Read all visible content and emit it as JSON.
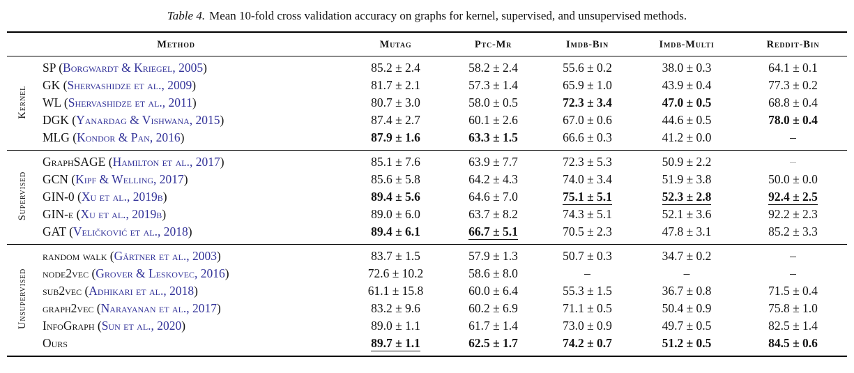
{
  "caption": {
    "label": "Table 4.",
    "text": "Mean 10-fold cross validation accuracy on graphs for kernel, supervised, and unsupervised methods."
  },
  "colors": {
    "citation_link": "#333399",
    "missing_value_muted": "#a8a8a8"
  },
  "table": {
    "columns": [
      "Method",
      "Mutag",
      "Ptc-Mr",
      "Imdb-Bin",
      "Imdb-Multi",
      "Reddit-Bin"
    ],
    "groups": [
      {
        "label": "Kernel",
        "rows": [
          {
            "method": "SP",
            "citation": "Borgwardt & Kriegel, 2005",
            "cells": [
              {
                "text": "85.2 ± 2.4"
              },
              {
                "text": "58.2 ± 2.4"
              },
              {
                "text": "55.6 ± 0.2"
              },
              {
                "text": "38.0 ± 0.3"
              },
              {
                "text": "64.1 ± 0.1"
              }
            ]
          },
          {
            "method": "GK",
            "citation": "Shervashidze et al., 2009",
            "cells": [
              {
                "text": "81.7 ± 2.1"
              },
              {
                "text": "57.3 ± 1.4"
              },
              {
                "text": "65.9 ± 1.0"
              },
              {
                "text": "43.9 ± 0.4"
              },
              {
                "text": "77.3 ± 0.2"
              }
            ]
          },
          {
            "method": "WL",
            "citation": "Shervashidze et al., 2011",
            "cells": [
              {
                "text": "80.7 ± 3.0"
              },
              {
                "text": "58.0 ± 0.5"
              },
              {
                "text": "72.3 ± 3.4",
                "bold": true
              },
              {
                "text": "47.0 ± 0.5",
                "bold": true
              },
              {
                "text": "68.8 ± 0.4"
              }
            ]
          },
          {
            "method": "DGK",
            "citation": "Yanardag & Vishwana, 2015",
            "cells": [
              {
                "text": "87.4 ± 2.7"
              },
              {
                "text": "60.1 ± 2.6"
              },
              {
                "text": "67.0 ± 0.6"
              },
              {
                "text": "44.6 ± 0.5"
              },
              {
                "text": "78.0 ± 0.4",
                "bold": true
              }
            ]
          },
          {
            "method": "MLG",
            "citation": "Kondor & Pan, 2016",
            "cells": [
              {
                "text": "87.9 ± 1.6",
                "bold": true
              },
              {
                "text": "63.3 ± 1.5",
                "bold": true
              },
              {
                "text": "66.6 ± 0.3"
              },
              {
                "text": "41.2 ± 0.0"
              },
              {
                "text": "–",
                "dash": true
              }
            ]
          }
        ]
      },
      {
        "label": "Supervised",
        "rows": [
          {
            "method": "GraphSAGE",
            "citation": "Hamilton et al., 2017",
            "cells": [
              {
                "text": "85.1 ± 7.6"
              },
              {
                "text": "63.9 ± 7.7"
              },
              {
                "text": "72.3 ± 5.3"
              },
              {
                "text": "50.9 ± 2.2"
              },
              {
                "text": "–",
                "dash": true,
                "muted": true
              }
            ]
          },
          {
            "method": "GCN",
            "citation": "Kipf & Welling, 2017",
            "cells": [
              {
                "text": "85.6 ± 5.8"
              },
              {
                "text": "64.2 ± 4.3"
              },
              {
                "text": "74.0 ± 3.4"
              },
              {
                "text": "51.9 ± 3.8"
              },
              {
                "text": "50.0 ± 0.0"
              }
            ]
          },
          {
            "method": "GIN-0",
            "citation": "Xu et al., 2019b",
            "cells": [
              {
                "text": "89.4 ± 5.6",
                "bold": true
              },
              {
                "text": "64.6 ± 7.0"
              },
              {
                "text": "75.1 ± 5.1",
                "bold": true,
                "underline": true
              },
              {
                "text": "52.3 ± 2.8",
                "bold": true,
                "underline": true
              },
              {
                "text": "92.4 ± 2.5",
                "bold": true,
                "underline": true
              }
            ]
          },
          {
            "method": "GIN-ϵ",
            "citation": "Xu et al., 2019b",
            "cells": [
              {
                "text": "89.0 ± 6.0"
              },
              {
                "text": "63.7 ± 8.2"
              },
              {
                "text": "74.3 ± 5.1"
              },
              {
                "text": "52.1 ± 3.6"
              },
              {
                "text": "92.2 ± 2.3"
              }
            ]
          },
          {
            "method": "GAT",
            "citation": "Veličković et al., 2018",
            "cells": [
              {
                "text": "89.4 ± 6.1",
                "bold": true
              },
              {
                "text": "66.7 ± 5.1",
                "bold": true,
                "underline": true
              },
              {
                "text": "70.5 ± 2.3"
              },
              {
                "text": "47.8 ± 3.1"
              },
              {
                "text": "85.2 ± 3.3"
              }
            ]
          }
        ]
      },
      {
        "label": "Unsupervised",
        "rows": [
          {
            "method": "random walk",
            "citation": "Gärtner et al., 2003",
            "cells": [
              {
                "text": "83.7 ± 1.5"
              },
              {
                "text": "57.9 ± 1.3"
              },
              {
                "text": "50.7 ± 0.3"
              },
              {
                "text": "34.7 ± 0.2"
              },
              {
                "text": "–",
                "dash": true
              }
            ]
          },
          {
            "method": "node2vec",
            "citation": "Grover & Leskovec, 2016",
            "cells": [
              {
                "text": "72.6 ± 10.2"
              },
              {
                "text": "58.6 ± 8.0"
              },
              {
                "text": "–",
                "dash": true
              },
              {
                "text": "–",
                "dash": true
              },
              {
                "text": "–",
                "dash": true
              }
            ]
          },
          {
            "method": "sub2vec",
            "citation": "Adhikari et al., 2018",
            "cells": [
              {
                "text": "61.1 ± 15.8"
              },
              {
                "text": "60.0 ± 6.4"
              },
              {
                "text": "55.3 ± 1.5"
              },
              {
                "text": "36.7 ± 0.8"
              },
              {
                "text": "71.5 ± 0.4"
              }
            ]
          },
          {
            "method": "graph2vec",
            "citation": "Narayanan et al., 2017",
            "cells": [
              {
                "text": "83.2 ± 9.6"
              },
              {
                "text": "60.2 ± 6.9"
              },
              {
                "text": "71.1 ± 0.5"
              },
              {
                "text": "50.4 ± 0.9"
              },
              {
                "text": "75.8 ± 1.0"
              }
            ]
          },
          {
            "method": "InfoGraph",
            "citation": "Sun et al., 2020",
            "cells": [
              {
                "text": "89.0 ± 1.1"
              },
              {
                "text": "61.7 ± 1.4"
              },
              {
                "text": "73.0 ± 0.9"
              },
              {
                "text": "49.7 ± 0.5"
              },
              {
                "text": "82.5 ± 1.4"
              }
            ]
          },
          {
            "method": "Ours",
            "citation": null,
            "cells": [
              {
                "text": "89.7 ± 1.1",
                "bold": true,
                "underline": true
              },
              {
                "text": "62.5 ± 1.7",
                "bold": true
              },
              {
                "text": "74.2 ± 0.7",
                "bold": true
              },
              {
                "text": "51.2 ± 0.5",
                "bold": true
              },
              {
                "text": "84.5 ± 0.6",
                "bold": true
              }
            ]
          }
        ]
      }
    ]
  }
}
